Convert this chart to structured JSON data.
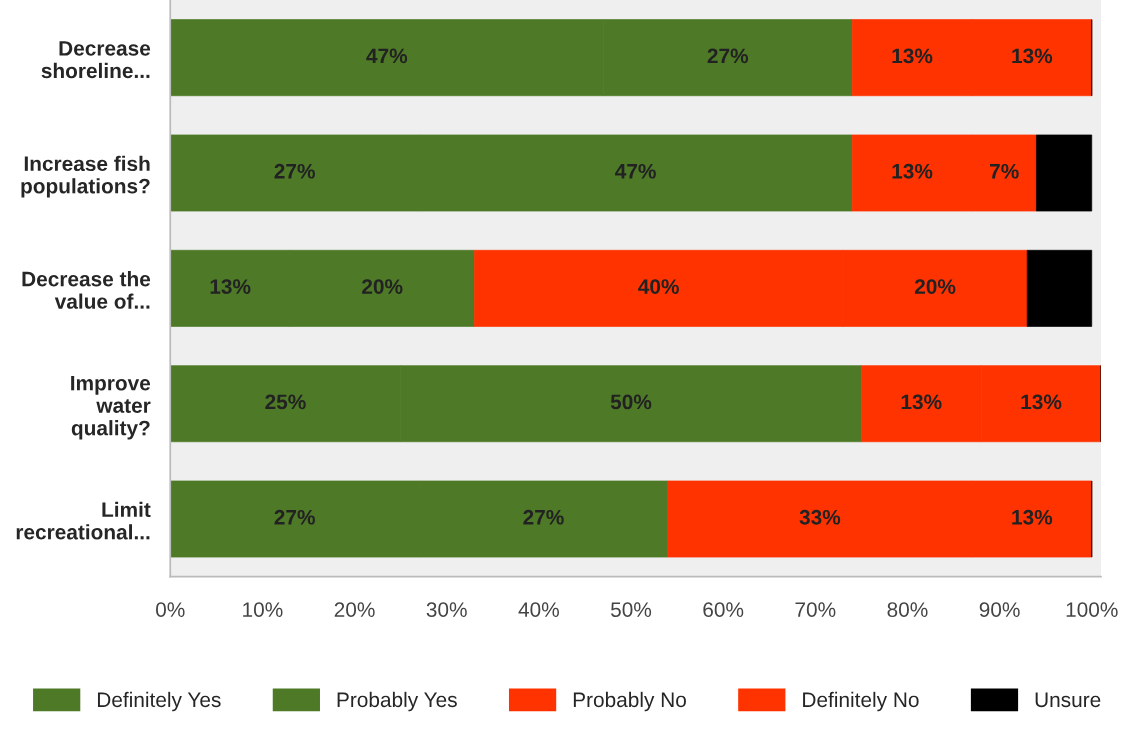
{
  "chart_data": {
    "type": "bar",
    "orientation": "horizontal",
    "stacked": true,
    "categories": [
      "Decrease\nshoreline...",
      "Increase fish\npopulations?",
      "Decrease the\nvalue of...",
      "Improve\nwater\nquality?",
      "Limit\nrecreational..."
    ],
    "series": [
      {
        "name": "Definitely Yes",
        "color": "#4e7a27",
        "values": [
          47,
          27,
          13,
          25,
          27
        ],
        "value_labels": [
          "47%",
          "27%",
          "13%",
          "25%",
          "27%"
        ]
      },
      {
        "name": "Probably Yes",
        "color": "#4e7a27",
        "values": [
          27,
          47,
          20,
          50,
          27
        ],
        "value_labels": [
          "27%",
          "47%",
          "20%",
          "50%",
          "27%"
        ]
      },
      {
        "name": "Probably No",
        "color": "#ff3300",
        "values": [
          13,
          13,
          40,
          13,
          33
        ],
        "value_labels": [
          "13%",
          "13%",
          "40%",
          "13%",
          "33%"
        ]
      },
      {
        "name": "Definitely No",
        "color": "#ff3300",
        "values": [
          13,
          7,
          20,
          13,
          13
        ],
        "value_labels": [
          "13%",
          "7%",
          "20%",
          "13%",
          "13%"
        ]
      },
      {
        "name": "Unsure",
        "color": "#000000",
        "values": [
          0,
          6,
          7,
          0,
          0
        ],
        "value_labels": [
          null,
          null,
          null,
          null,
          null
        ]
      }
    ],
    "xlim": [
      0,
      101
    ],
    "xticks": [
      {
        "value": 0,
        "label": "0%"
      },
      {
        "value": 10,
        "label": "10%"
      },
      {
        "value": 20,
        "label": "20%"
      },
      {
        "value": 30,
        "label": "30%"
      },
      {
        "value": 40,
        "label": "40%"
      },
      {
        "value": 50,
        "label": "50%"
      },
      {
        "value": 60,
        "label": "60%"
      },
      {
        "value": 70,
        "label": "70%"
      },
      {
        "value": 80,
        "label": "80%"
      },
      {
        "value": 90,
        "label": "90%"
      },
      {
        "value": 100,
        "label": "100%"
      }
    ],
    "grid": false,
    "legend": "bottom"
  }
}
